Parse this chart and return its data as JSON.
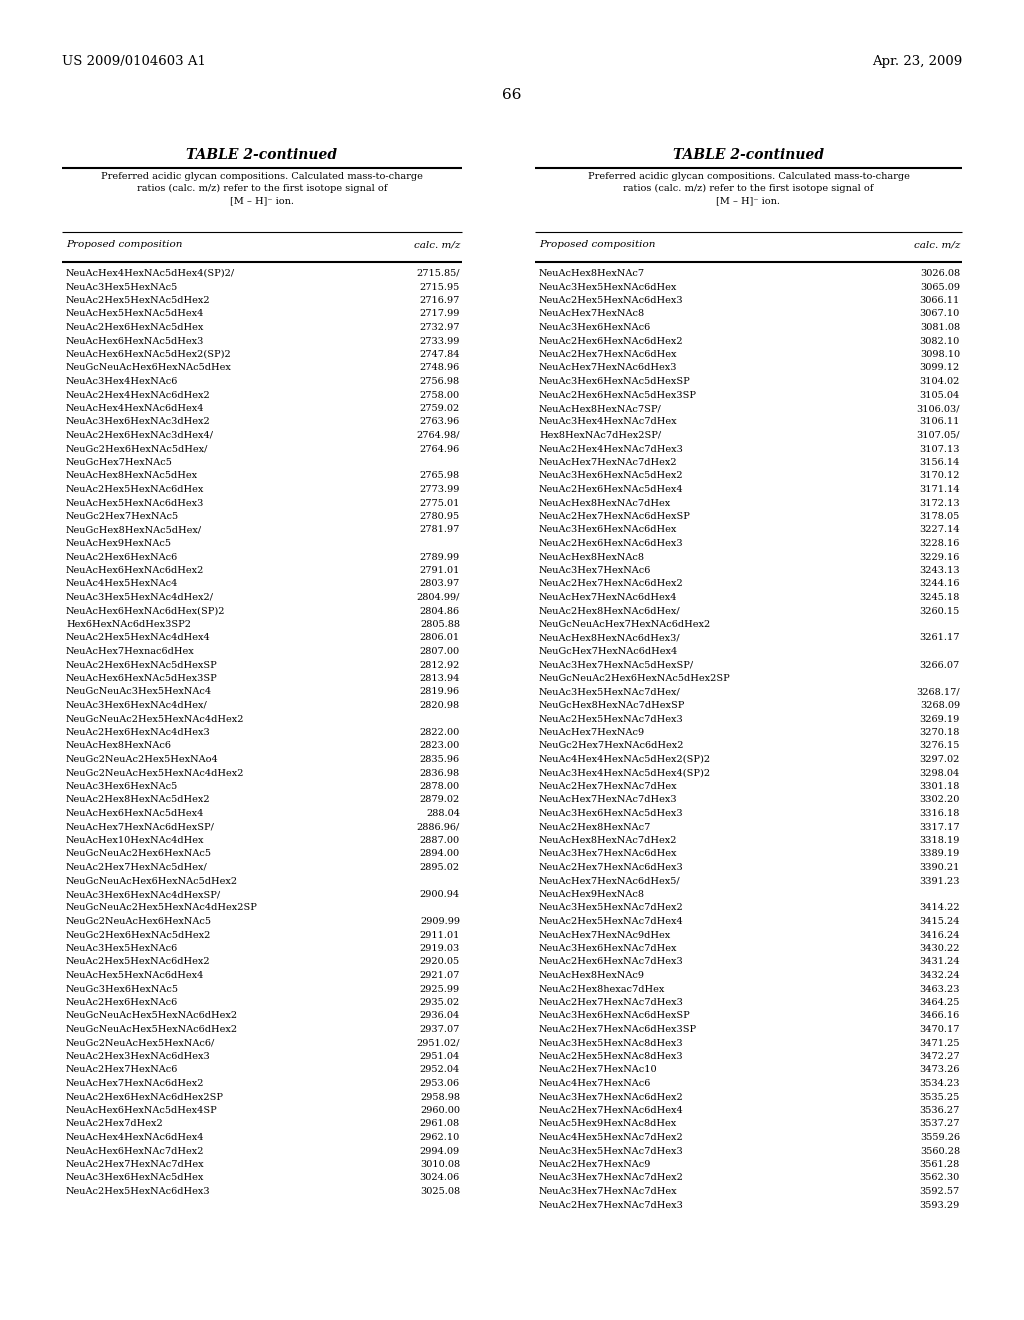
{
  "header_left": "US 2009/0104603 A1",
  "header_right": "Apr. 23, 2009",
  "page_number": "66",
  "table_title": "TABLE 2-continued",
  "table_subtitle": "Preferred acidic glycan compositions. Calculated mass-to-charge\nratios (calc. m/z) refer to the first isotope signal of\n[M – H]⁻ ion.",
  "col1_header": "Proposed composition",
  "col2_header": "calc. m/z",
  "left_data": [
    [
      "NeuAcHex4HexNAc5dHex4(SP)2/",
      "2715.85/"
    ],
    [
      "NeuAc3Hex5HexNAc5",
      "2715.95"
    ],
    [
      "NeuAc2Hex5HexNAc5dHex2",
      "2716.97"
    ],
    [
      "NeuAcHex5HexNAc5dHex4",
      "2717.99"
    ],
    [
      "NeuAc2Hex6HexNAc5dHex",
      "2732.97"
    ],
    [
      "NeuAcHex6HexNAc5dHex3",
      "2733.99"
    ],
    [
      "NeuAcHex6HexNAc5dHex2(SP)2",
      "2747.84"
    ],
    [
      "NeuGcNeuAcHex6HexNAc5dHex",
      "2748.96"
    ],
    [
      "NeuAc3Hex4HexNAc6",
      "2756.98"
    ],
    [
      "NeuAc2Hex4HexNAc6dHex2",
      "2758.00"
    ],
    [
      "NeuAcHex4HexNAc6dHex4",
      "2759.02"
    ],
    [
      "NeuAc3Hex6HexNAc3dHex2",
      "2763.96"
    ],
    [
      "NeuAc2Hex6HexNAc3dHex4/",
      "2764.98/"
    ],
    [
      "NeuGc2Hex6HexNAc5dHex/",
      "2764.96"
    ],
    [
      "NeuGcHex7HexNAc5",
      ""
    ],
    [
      "NeuAcHex8HexNAc5dHex",
      "2765.98"
    ],
    [
      "NeuAc2Hex5HexNAc6dHex",
      "2773.99"
    ],
    [
      "NeuAcHex5HexNAc6dHex3",
      "2775.01"
    ],
    [
      "NeuGc2Hex7HexNAc5",
      "2780.95"
    ],
    [
      "NeuGcHex8HexNAc5dHex/",
      "2781.97"
    ],
    [
      "NeuAcHex9HexNAc5",
      ""
    ],
    [
      "NeuAc2Hex6HexNAc6",
      "2789.99"
    ],
    [
      "NeuAcHex6HexNAc6dHex2",
      "2791.01"
    ],
    [
      "NeuAc4Hex5HexNAc4",
      "2803.97"
    ],
    [
      "NeuAc3Hex5HexNAc4dHex2/",
      "2804.99/"
    ],
    [
      "NeuAcHex6HexNAc6dHex(SP)2",
      "2804.86"
    ],
    [
      "Hex6HexNAc6dHex3SP2",
      "2805.88"
    ],
    [
      "NeuAc2Hex5HexNAc4dHex4",
      "2806.01"
    ],
    [
      "NeuAcHex7Hexnac6dHex",
      "2807.00"
    ],
    [
      "NeuAc2Hex6HexNAc5dHexSP",
      "2812.92"
    ],
    [
      "NeuAcHex6HexNAc5dHex3SP",
      "2813.94"
    ],
    [
      "NeuGcNeuAc3Hex5HexNAc4",
      "2819.96"
    ],
    [
      "NeuAc3Hex6HexNAc4dHex/",
      "2820.98"
    ],
    [
      "NeuGcNeuAc2Hex5HexNAc4dHex2",
      ""
    ],
    [
      "NeuAc2Hex6HexNAc4dHex3",
      "2822.00"
    ],
    [
      "NeuAcHex8HexNAc6",
      "2823.00"
    ],
    [
      "NeuGc2NeuAc2Hex5HexNAo4",
      "2835.96"
    ],
    [
      "NeuGc2NeuAcHex5HexNAc4dHex2",
      "2836.98"
    ],
    [
      "NeuAc3Hex6HexNAc5",
      "2878.00"
    ],
    [
      "NeuAc2Hex8HexNAc5dHex2",
      "2879.02"
    ],
    [
      "NeuAcHex6HexNAc5dHex4",
      "288.04"
    ],
    [
      "NeuAcHex7HexNAc6dHexSP/",
      "2886.96/"
    ],
    [
      "NeuAcHex10HexNAc4dHex",
      "2887.00"
    ],
    [
      "NeuGcNeuAc2Hex6HexNAc5",
      "2894.00"
    ],
    [
      "NeuAc2Hex7HexNAc5dHex/",
      "2895.02"
    ],
    [
      "NeuGcNeuAcHex6HexNAc5dHex2",
      ""
    ],
    [
      "NeuAc3Hex6HexNAc4dHexSP/",
      "2900.94"
    ],
    [
      "NeuGcNeuAc2Hex5HexNAc4dHex2SP",
      ""
    ],
    [
      "NeuGc2NeuAcHex6HexNAc5",
      "2909.99"
    ],
    [
      "NeuGc2Hex6HexNAc5dHex2",
      "2911.01"
    ],
    [
      "NeuAc3Hex5HexNAc6",
      "2919.03"
    ],
    [
      "NeuAc2Hex5HexNAc6dHex2",
      "2920.05"
    ],
    [
      "NeuAcHex5HexNAc6dHex4",
      "2921.07"
    ],
    [
      "NeuGc3Hex6HexNAc5",
      "2925.99"
    ],
    [
      "NeuAc2Hex6HexNAc6",
      "2935.02"
    ],
    [
      "NeuGcNeuAcHex5HexNAc6dHex2",
      "2936.04"
    ],
    [
      "NeuGcNeuAcHex5HexNAc6dHex2",
      "2937.07"
    ],
    [
      "NeuGc2NeuAcHex5HexNAc6/",
      "2951.02/"
    ],
    [
      "NeuAc2Hex3HexNAc6dHex3",
      "2951.04"
    ],
    [
      "NeuAc2Hex7HexNAc6",
      "2952.04"
    ],
    [
      "NeuAcHex7HexNAc6dHex2",
      "2953.06"
    ],
    [
      "NeuAc2Hex6HexNAc6dHex2SP",
      "2958.98"
    ],
    [
      "NeuAcHex6HexNAc5dHex4SP",
      "2960.00"
    ],
    [
      "NeuAc2Hex7dHex2",
      "2961.08"
    ],
    [
      "NeuAcHex4HexNAc6dHex4",
      "2962.10"
    ],
    [
      "NeuAcHex6HexNAc7dHex2",
      "2994.09"
    ],
    [
      "NeuAc2Hex7HexNAc7dHex",
      "3010.08"
    ],
    [
      "NeuAc3Hex6HexNAc5dHex",
      "3024.06"
    ],
    [
      "NeuAc2Hex5HexNAc6dHex3",
      "3025.08"
    ]
  ],
  "right_data": [
    [
      "NeuAcHex8HexNAc7",
      "3026.08"
    ],
    [
      "NeuAc3Hex5HexNAc6dHex",
      "3065.09"
    ],
    [
      "NeuAc2Hex5HexNAc6dHex3",
      "3066.11"
    ],
    [
      "NeuAcHex7HexNAc8",
      "3067.10"
    ],
    [
      "NeuAc3Hex6HexNAc6",
      "3081.08"
    ],
    [
      "NeuAc2Hex6HexNAc6dHex2",
      "3082.10"
    ],
    [
      "NeuAc2Hex7HexNAc6dHex",
      "3098.10"
    ],
    [
      "NeuAcHex7HexNAc6dHex3",
      "3099.12"
    ],
    [
      "NeuAc3Hex6HexNAc5dHexSP",
      "3104.02"
    ],
    [
      "NeuAc2Hex6HexNAc5dHex3SP",
      "3105.04"
    ],
    [
      "NeuAcHex8HexNAc7SP/",
      "3106.03/"
    ],
    [
      "NeuAc3Hex4HexNAc7dHex",
      "3106.11"
    ],
    [
      "Hex8HexNAc7dHex2SP/",
      "3107.05/"
    ],
    [
      "NeuAc2Hex4HexNAc7dHex3",
      "3107.13"
    ],
    [
      "NeuAcHex7HexNAc7dHex2",
      "3156.14"
    ],
    [
      "NeuAc3Hex6HexNAc5dHex2",
      "3170.12"
    ],
    [
      "NeuAc2Hex6HexNAc5dHex4",
      "3171.14"
    ],
    [
      "NeuAcHex8HexNAc7dHex",
      "3172.13"
    ],
    [
      "NeuAc2Hex7HexNAc6dHexSP",
      "3178.05"
    ],
    [
      "NeuAc3Hex6HexNAc6dHex",
      "3227.14"
    ],
    [
      "NeuAc2Hex6HexNAc6dHex3",
      "3228.16"
    ],
    [
      "NeuAcHex8HexNAc8",
      "3229.16"
    ],
    [
      "NeuAc3Hex7HexNAc6",
      "3243.13"
    ],
    [
      "NeuAc2Hex7HexNAc6dHex2",
      "3244.16"
    ],
    [
      "NeuAcHex7HexNAc6dHex4",
      "3245.18"
    ],
    [
      "NeuAc2Hex8HexNAc6dHex/",
      "3260.15"
    ],
    [
      "NeuGcNeuAcHex7HexNAc6dHex2",
      ""
    ],
    [
      "NeuAcHex8HexNAc6dHex3/",
      "3261.17"
    ],
    [
      "NeuGcHex7HexNAc6dHex4",
      ""
    ],
    [
      "NeuAc3Hex7HexNAc5dHexSP/",
      "3266.07"
    ],
    [
      "NeuGcNeuAc2Hex6HexNAc5dHex2SP",
      ""
    ],
    [
      "NeuAc3Hex5HexNAc7dHex/",
      "3268.17/"
    ],
    [
      "NeuGcHex8HexNAc7dHexSP",
      "3268.09"
    ],
    [
      "NeuAc2Hex5HexNAc7dHex3",
      "3269.19"
    ],
    [
      "NeuAcHex7HexNAc9",
      "3270.18"
    ],
    [
      "NeuGc2Hex7HexNAc6dHex2",
      "3276.15"
    ],
    [
      "NeuAc4Hex4HexNAc5dHex2(SP)2",
      "3297.02"
    ],
    [
      "NeuAc3Hex4HexNAc5dHex4(SP)2",
      "3298.04"
    ],
    [
      "NeuAc2Hex7HexNAc7dHex",
      "3301.18"
    ],
    [
      "NeuAcHex7HexNAc7dHex3",
      "3302.20"
    ],
    [
      "NeuAc3Hex6HexNAc5dHex3",
      "3316.18"
    ],
    [
      "NeuAc2Hex8HexNAc7",
      "3317.17"
    ],
    [
      "NeuAcHex8HexNAc7dHex2",
      "3318.19"
    ],
    [
      "NeuAc3Hex7HexNAc6dHex",
      "3389.19"
    ],
    [
      "NeuAc2Hex7HexNAc6dHex3",
      "3390.21"
    ],
    [
      "NeuAcHex7HexNAc6dHex5/",
      "3391.23"
    ],
    [
      "NeuAcHex9HexNAc8",
      ""
    ],
    [
      "NeuAc3Hex5HexNAc7dHex2",
      "3414.22"
    ],
    [
      "NeuAc2Hex5HexNAc7dHex4",
      "3415.24"
    ],
    [
      "NeuAcHex7HexNAc9dHex",
      "3416.24"
    ],
    [
      "NeuAc3Hex6HexNAc7dHex",
      "3430.22"
    ],
    [
      "NeuAc2Hex6HexNAc7dHex3",
      "3431.24"
    ],
    [
      "NeuAcHex8HexNAc9",
      "3432.24"
    ],
    [
      "NeuAc2Hex8hexac7dHex",
      "3463.23"
    ],
    [
      "NeuAc2Hex7HexNAc7dHex3",
      "3464.25"
    ],
    [
      "NeuAc3Hex6HexNAc6dHexSP",
      "3466.16"
    ],
    [
      "NeuAc2Hex7HexNAc6dHex3SP",
      "3470.17"
    ],
    [
      "NeuAc3Hex5HexNAc8dHex3",
      "3471.25"
    ],
    [
      "NeuAc2Hex5HexNAc8dHex3",
      "3472.27"
    ],
    [
      "NeuAc2Hex7HexNAc10",
      "3473.26"
    ],
    [
      "NeuAc4Hex7HexNAc6",
      "3534.23"
    ],
    [
      "NeuAc3Hex7HexNAc6dHex2",
      "3535.25"
    ],
    [
      "NeuAc2Hex7HexNAc6dHex4",
      "3536.27"
    ],
    [
      "NeuAc5Hex9HexNAc8dHex",
      "3537.27"
    ],
    [
      "NeuAc4Hex5HexNAc7dHex2",
      "3559.26"
    ],
    [
      "NeuAc3Hex5HexNAc7dHex3",
      "3560.28"
    ],
    [
      "NeuAc2Hex7HexNAc9",
      "3561.28"
    ],
    [
      "NeuAc3Hex7HexNAc7dHex2",
      "3562.30"
    ],
    [
      "NeuAc3Hex7HexNAc7dHex",
      "3592.57"
    ],
    [
      "NeuAc2Hex7HexNAc7dHex3",
      "3593.29"
    ]
  ],
  "bg_color": "#ffffff",
  "text_color": "#000000",
  "font_size_title": 10.0,
  "font_size_subtitle": 7.0,
  "font_size_col_header": 7.5,
  "font_size_body": 7.0,
  "font_size_page_header": 9.5,
  "font_size_page_num": 11.0
}
